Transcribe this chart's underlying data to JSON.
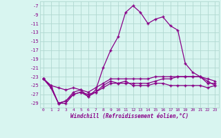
{
  "xlabel": "Windchill (Refroidissement éolien,°C)",
  "background_color": "#d8f5f0",
  "grid_color": "#b0d8d0",
  "line_color": "#880088",
  "xlim": [
    -0.5,
    23.5
  ],
  "ylim": [
    -30,
    -6
  ],
  "xticks": [
    0,
    1,
    2,
    3,
    4,
    5,
    6,
    7,
    8,
    9,
    10,
    11,
    12,
    13,
    14,
    15,
    16,
    17,
    18,
    19,
    20,
    21,
    22,
    23
  ],
  "yticks": [
    -7,
    -9,
    -11,
    -13,
    -15,
    -17,
    -19,
    -21,
    -23,
    -25,
    -27,
    -29
  ],
  "hours": [
    0,
    1,
    2,
    3,
    4,
    5,
    6,
    7,
    8,
    9,
    10,
    11,
    12,
    13,
    14,
    15,
    16,
    17,
    18,
    19,
    20,
    21,
    22,
    23
  ],
  "line1": [
    -23.5,
    -25.0,
    -29.0,
    -29.0,
    -27.0,
    -26.5,
    -27.0,
    -26.5,
    -25.5,
    -24.5,
    -24.5,
    -24.5,
    -24.5,
    -24.5,
    -24.5,
    -24.0,
    -23.5,
    -23.5,
    -23.0,
    -23.0,
    -23.0,
    -23.0,
    -24.5,
    -24.5
  ],
  "line2": [
    -23.5,
    -25.0,
    -25.5,
    -26.0,
    -25.5,
    -26.0,
    -26.5,
    -25.5,
    -24.5,
    -23.5,
    -23.5,
    -23.5,
    -23.5,
    -23.5,
    -23.5,
    -23.0,
    -23.0,
    -23.0,
    -23.0,
    -23.0,
    -23.0,
    -23.0,
    -23.5,
    -24.0
  ],
  "line3": [
    -23.5,
    -25.5,
    -29.0,
    -28.5,
    -27.0,
    -26.5,
    -27.5,
    -26.0,
    -21.0,
    -17.0,
    -14.0,
    -8.5,
    -7.0,
    -8.5,
    -11.0,
    -10.0,
    -9.5,
    -11.5,
    -12.5,
    -20.0,
    -22.0,
    -23.0,
    -24.0,
    -25.0
  ],
  "line4": [
    -23.5,
    -25.5,
    -29.0,
    -28.5,
    -26.5,
    -26.0,
    -27.5,
    -26.5,
    -25.0,
    -24.0,
    -24.5,
    -24.0,
    -25.0,
    -25.0,
    -25.0,
    -24.5,
    -24.5,
    -25.0,
    -25.0,
    -25.0,
    -25.0,
    -25.0,
    -25.5,
    -25.0
  ]
}
